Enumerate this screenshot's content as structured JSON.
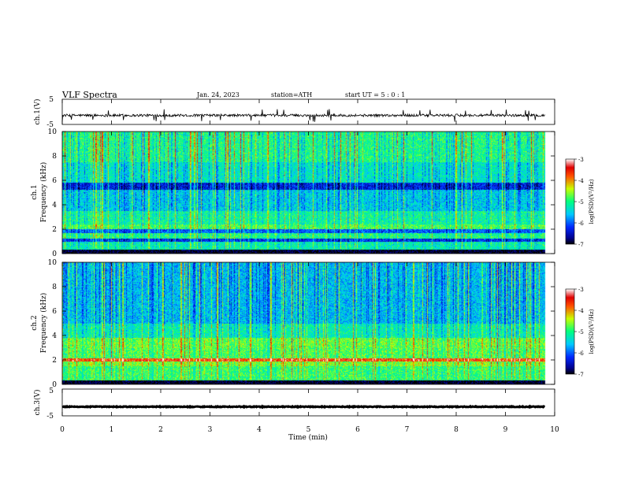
{
  "header": {
    "title": "VLF  Spectra",
    "date": "Jan. 24, 2023",
    "station": "station=ATH",
    "start": "start  UT  =    5  : 0  : 1"
  },
  "chart_data": [
    {
      "type": "line",
      "name": "ch1-waveform",
      "ylabel": "ch.1(V)",
      "ylim": [
        -5,
        5
      ],
      "yticks": [
        "5",
        "-5"
      ],
      "xlim": [
        0,
        10
      ],
      "trace": {
        "baseline_v": -1.4,
        "noise_amp_v": 0.5,
        "end_min": 9.8
      }
    },
    {
      "type": "heatmap",
      "name": "ch1-spectrogram",
      "ylabel": "ch.1\nFrequency  (kHz)",
      "ylabel_line1": "ch.1",
      "ylabel_line2": "Frequency  (kHz)",
      "ylim": [
        0,
        10
      ],
      "yticks": [
        "0",
        "2",
        "4",
        "6",
        "8",
        "10"
      ],
      "xlim": [
        0,
        10
      ],
      "data_end_min": 9.8,
      "colorbar": {
        "range": [
          -7,
          -3
        ],
        "ticks": [
          "-3",
          "-4",
          "-5",
          "-6",
          "-7"
        ],
        "label": "log(PSD)(V²/Hz)"
      },
      "bands_khz_level": [
        {
          "f": [
            0.0,
            0.3
          ],
          "level": -7.0
        },
        {
          "f": [
            0.3,
            1.0
          ],
          "level": -5.2
        },
        {
          "f": [
            1.0,
            1.2
          ],
          "level": -6.2
        },
        {
          "f": [
            1.2,
            1.7
          ],
          "level": -5.0
        },
        {
          "f": [
            1.7,
            2.0
          ],
          "level": -6.0
        },
        {
          "f": [
            2.0,
            2.4
          ],
          "level": -4.8
        },
        {
          "f": [
            2.4,
            3.5
          ],
          "level": -5.1
        },
        {
          "f": [
            3.5,
            5.2
          ],
          "level": -5.5
        },
        {
          "f": [
            5.2,
            5.8
          ],
          "level": -6.3
        },
        {
          "f": [
            5.8,
            7.5
          ],
          "level": -5.3
        },
        {
          "f": [
            7.5,
            10.0
          ],
          "level": -5.0
        }
      ]
    },
    {
      "type": "heatmap",
      "name": "ch2-spectrogram",
      "ylabel": "ch.2\nFrequency  (kHz)",
      "ylabel_line1": "ch.2",
      "ylabel_line2": "Frequency  (kHz)",
      "ylim": [
        0,
        10
      ],
      "yticks": [
        "0",
        "2",
        "4",
        "6",
        "8",
        "10"
      ],
      "xlim": [
        0,
        10
      ],
      "data_end_min": 9.8,
      "colorbar": {
        "range": [
          -7,
          -3
        ],
        "ticks": [
          "-3",
          "-4",
          "-5",
          "-6",
          "-7"
        ],
        "label": "log(PSD)(V²/Hz)"
      },
      "bands_khz_level": [
        {
          "f": [
            0.0,
            0.3
          ],
          "level": -7.0
        },
        {
          "f": [
            0.3,
            1.5
          ],
          "level": -4.9
        },
        {
          "f": [
            1.5,
            1.9
          ],
          "level": -4.6
        },
        {
          "f": [
            1.9,
            2.1
          ],
          "level": -3.6
        },
        {
          "f": [
            2.1,
            3.0
          ],
          "level": -4.8
        },
        {
          "f": [
            3.0,
            3.8
          ],
          "level": -4.7
        },
        {
          "f": [
            3.8,
            5.0
          ],
          "level": -5.2
        },
        {
          "f": [
            5.0,
            10.0
          ],
          "level": -5.6
        }
      ]
    },
    {
      "type": "line",
      "name": "ch3-waveform",
      "ylabel": "ch.3(V)",
      "ylim": [
        -5,
        5
      ],
      "yticks": [
        "5",
        "-5"
      ],
      "xlim": [
        0,
        10
      ],
      "trace": {
        "baseline_v": -1.6,
        "noise_amp_v": 0.15,
        "end_min": 9.8
      }
    }
  ],
  "xaxis": {
    "label": "Time  (min)",
    "ticks": [
      "0",
      "1",
      "2",
      "3",
      "4",
      "5",
      "6",
      "7",
      "8",
      "9",
      "10"
    ]
  }
}
